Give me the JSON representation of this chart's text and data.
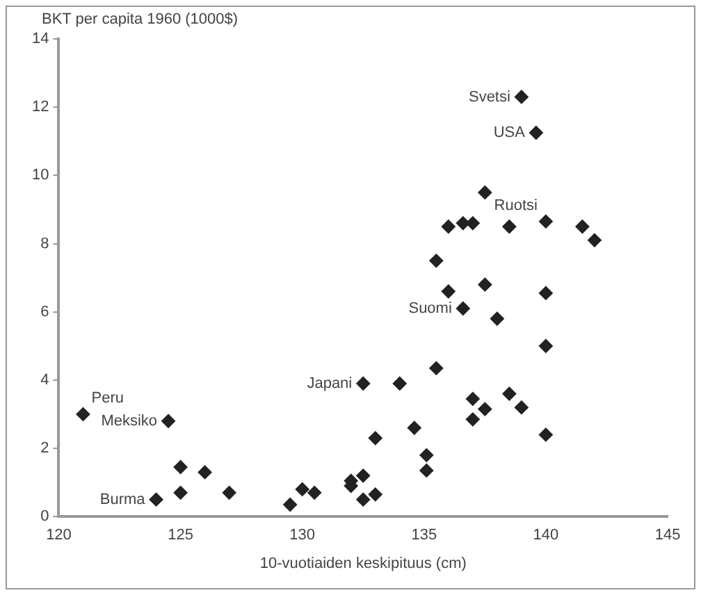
{
  "chart_data": {
    "type": "scatter",
    "ylabel": "BKT per capita 1960 (1000$)",
    "xlabel": "10-vuotiaiden keskipituus (cm)",
    "xlim": [
      120,
      145
    ],
    "xticks": [
      120,
      125,
      130,
      135,
      140,
      145
    ],
    "ylim": [
      0,
      14
    ],
    "yticks": [
      0,
      2,
      4,
      6,
      8,
      10,
      12,
      14
    ],
    "grid": false,
    "legend": false,
    "marker": "diamond",
    "series": [
      {
        "color": "#222222",
        "x": [
          121,
          124.5,
          124,
          125,
          125,
          126,
          127,
          129.5,
          130,
          130.5,
          132,
          132,
          132.5,
          132.5,
          133,
          132.5,
          134,
          133,
          134.6,
          135.1,
          135.1,
          135.5,
          137,
          137.5,
          137,
          138.5,
          139,
          140,
          140,
          138,
          139,
          139.6,
          137.5,
          136,
          136.6,
          137,
          138.5,
          140,
          141.5,
          142,
          135.5,
          136,
          137.5,
          140,
          136.6
        ],
        "values": [
          3.0,
          2.8,
          0.5,
          1.45,
          0.7,
          1.3,
          0.7,
          0.35,
          0.8,
          0.7,
          0.9,
          1.05,
          1.2,
          0.5,
          0.65,
          3.9,
          3.9,
          2.3,
          2.6,
          1.8,
          1.35,
          4.35,
          3.45,
          3.15,
          2.85,
          3.6,
          3.2,
          2.4,
          5.0,
          5.8,
          12.3,
          11.25,
          9.5,
          8.5,
          8.6,
          8.6,
          8.5,
          8.65,
          8.5,
          8.1,
          7.5,
          6.6,
          6.8,
          6.55,
          6.1
        ]
      }
    ],
    "annotations": [
      {
        "text": "Peru",
        "x": 121,
        "y": 3.0
      },
      {
        "text": "Meksiko",
        "x": 124.5,
        "y": 2.8
      },
      {
        "text": "Burma",
        "x": 124,
        "y": 0.5
      },
      {
        "text": "Japani",
        "x": 132.5,
        "y": 3.9
      },
      {
        "text": "Suomi",
        "x": 136.6,
        "y": 6.1
      },
      {
        "text": "Svetsi",
        "x": 139,
        "y": 12.3
      },
      {
        "text": "USA",
        "x": 139.6,
        "y": 11.25
      },
      {
        "text": "Ruotsi",
        "x": 140,
        "y": 8.65
      }
    ]
  }
}
